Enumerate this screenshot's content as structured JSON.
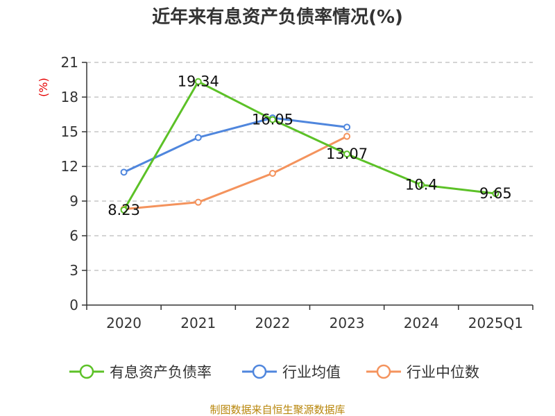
{
  "chart_data": {
    "type": "line",
    "title": "近年来有息资产负债率情况(%)",
    "ylabel": "(%)",
    "xlabel": "",
    "categories": [
      "2020",
      "2021",
      "2022",
      "2023",
      "2024",
      "2025Q1"
    ],
    "ylim": [
      0,
      21
    ],
    "yticks": [
      0,
      3,
      6,
      9,
      12,
      15,
      18,
      21
    ],
    "grid": true,
    "legend_position": "bottom",
    "series": [
      {
        "name": "有息资产负债率",
        "color": "#5cc127",
        "values": [
          8.23,
          19.34,
          16.05,
          13.07,
          10.4,
          9.65
        ],
        "labels": [
          "8.23",
          "19.34",
          "16.05",
          "13.07",
          "10.4",
          "9.65"
        ]
      },
      {
        "name": "行业均值",
        "color": "#4f86dd",
        "values": [
          11.5,
          14.5,
          16.2,
          15.4,
          null,
          null
        ],
        "labels": null
      },
      {
        "name": "行业中位数",
        "color": "#f4935d",
        "values": [
          8.3,
          8.9,
          11.4,
          14.6,
          null,
          null
        ],
        "labels": null
      }
    ],
    "source": "制图数据来自恒生聚源数据库"
  }
}
